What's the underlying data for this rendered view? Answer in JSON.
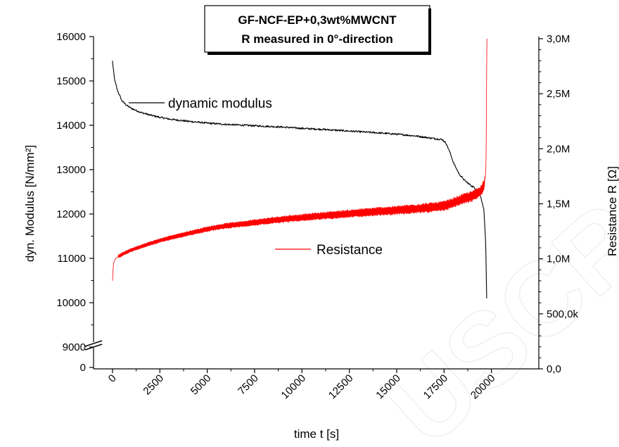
{
  "chart_data": {
    "type": "line",
    "title_lines": [
      "GF-NCF-EP+0,3wt%MWCNT",
      "R measured in 0°-direction"
    ],
    "xlabel": "time t [s]",
    "ylabel_left": "dyn. Modulus [N/mm²]",
    "ylabel_right": "Resistance R [Ω]",
    "xlim": [
      -1000,
      22500
    ],
    "x_ticks": [
      0,
      2500,
      5000,
      7500,
      10000,
      12500,
      15000,
      17500,
      20000
    ],
    "x_tick_labels": [
      "0",
      "2500",
      "5000",
      "7500",
      "10000",
      "12500",
      "15000",
      "17500",
      "20000"
    ],
    "y_left_ticks": [
      {
        "value": 0,
        "label": "0"
      },
      {
        "value": 9000,
        "label": "9000"
      },
      {
        "value": 10000,
        "label": "10000"
      },
      {
        "value": 11000,
        "label": "11000"
      },
      {
        "value": 12000,
        "label": "12000"
      },
      {
        "value": 13000,
        "label": "13000"
      },
      {
        "value": 14000,
        "label": "14000"
      },
      {
        "value": 15000,
        "label": "15000"
      },
      {
        "value": 16000,
        "label": "16000"
      }
    ],
    "y_left_break": {
      "below": 9000,
      "above": 0
    },
    "y_right_ticks": [
      0,
      500000,
      1000000,
      1500000,
      2000000,
      2500000,
      3000000
    ],
    "y_right_tick_labels": [
      "0,0",
      "500,0k",
      "1,0M",
      "1,5M",
      "2,0M",
      "2,5M",
      "3,0M"
    ],
    "ylim_right": [
      0,
      3000000
    ],
    "grid": false,
    "series": [
      {
        "name": "dynamic modulus",
        "axis": "left",
        "color": "#000000",
        "x": [
          0,
          100,
          250,
          500,
          750,
          1000,
          1500,
          2000,
          2500,
          3000,
          4000,
          5000,
          6000,
          7500,
          9000,
          10000,
          11000,
          12500,
          14000,
          15000,
          16000,
          17000,
          17400,
          17600,
          17800,
          18000,
          18300,
          18600,
          18900,
          19200,
          19400,
          19600,
          19700,
          19750
        ],
        "values": [
          15450,
          15050,
          14800,
          14550,
          14450,
          14380,
          14290,
          14230,
          14180,
          14140,
          14090,
          14050,
          14020,
          13990,
          13960,
          13930,
          13910,
          13870,
          13830,
          13800,
          13760,
          13700,
          13680,
          13600,
          13400,
          13150,
          12900,
          12750,
          12650,
          12560,
          12450,
          12100,
          11300,
          10100
        ]
      },
      {
        "name": "Resistance",
        "axis": "right",
        "color": "#ff0000",
        "x": [
          0,
          50,
          150,
          300,
          600,
          1000,
          2000,
          3000,
          4000,
          5000,
          6000,
          7500,
          9000,
          10000,
          11000,
          12500,
          14000,
          15000,
          16000,
          17000,
          17500,
          18000,
          18500,
          19000,
          19300,
          19500,
          19650,
          19700,
          19720,
          19740,
          19760
        ],
        "values": [
          800000,
          960000,
          1000000,
          1020000,
          1050000,
          1080000,
          1140000,
          1190000,
          1230000,
          1270000,
          1300000,
          1330000,
          1360000,
          1375000,
          1390000,
          1410000,
          1430000,
          1440000,
          1455000,
          1470000,
          1480000,
          1510000,
          1545000,
          1570000,
          1600000,
          1630000,
          1700000,
          1800000,
          2000000,
          2500000,
          3000000
        ]
      }
    ],
    "legend": [
      {
        "series": "dynamic modulus",
        "placement": "upper-left",
        "anchor_x": 500,
        "anchor_y": 14500
      },
      {
        "series": "Resistance",
        "placement": "center",
        "anchor_x": 8500,
        "anchor_y": 11050
      }
    ]
  }
}
